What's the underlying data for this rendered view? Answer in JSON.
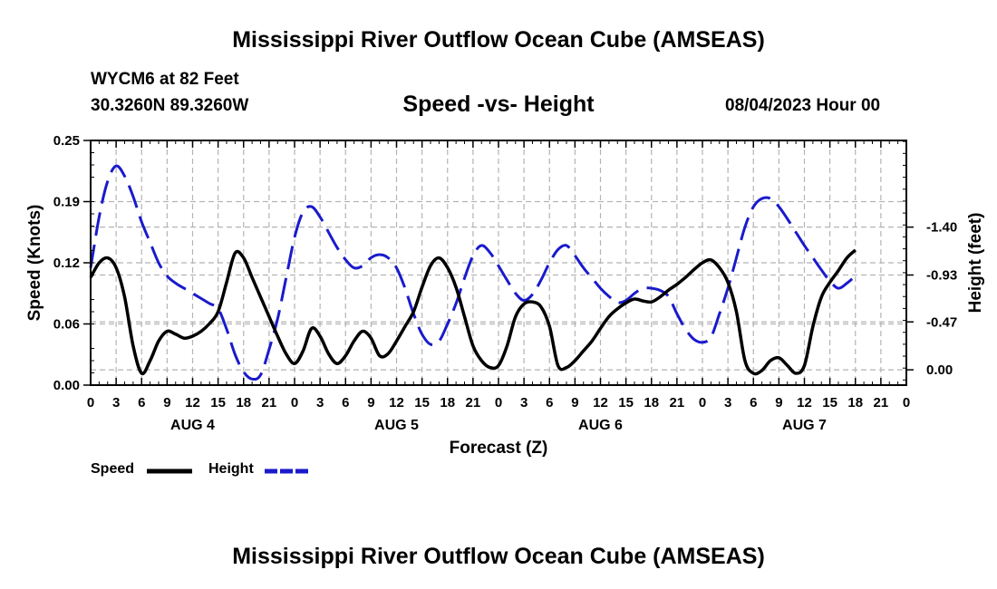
{
  "header": {
    "title": "Mississippi River Outflow Ocean Cube (AMSEAS)",
    "station": "WYCM6 at 82 Feet",
    "coords": "30.3260N  89.3260W",
    "subtitle": "Speed -vs- Height",
    "datetime": "08/04/2023 Hour 00",
    "footer_title": "Mississippi River Outflow Ocean Cube (AMSEAS)"
  },
  "legend": {
    "speed_label": "Speed",
    "height_label": "Height"
  },
  "chart_data": {
    "type": "line",
    "title": "Speed -vs- Height",
    "xlabel": "Forecast (Z)",
    "ylabel": "Speed (Knots)",
    "y2label": "Height (feet)",
    "x_range": [
      0,
      96
    ],
    "ylim": [
      0,
      0.25
    ],
    "y2lim": [
      0.15,
      -2.25
    ],
    "y_ticks": [
      "0.00",
      "0.06",
      "0.12",
      "0.19",
      "0.25"
    ],
    "y_tick_values": [
      0,
      0.0625,
      0.125,
      0.1875,
      0.25
    ],
    "y2_ticks": [
      "0.00",
      "-0.47",
      "-0.93",
      "-1.40"
    ],
    "y2_tick_values": [
      0,
      -0.47,
      -0.93,
      -1.4
    ],
    "x_tick_labels": [
      "0",
      "3",
      "6",
      "9",
      "12",
      "15",
      "18",
      "21",
      "0",
      "3",
      "6",
      "9",
      "12",
      "15",
      "18",
      "21",
      "0",
      "3",
      "6",
      "9",
      "12",
      "15",
      "18",
      "21",
      "0",
      "3",
      "6",
      "9",
      "12",
      "15",
      "18",
      "21",
      "0"
    ],
    "day_labels": [
      {
        "label": "AUG 4",
        "hour": 12
      },
      {
        "label": "AUG 5",
        "hour": 36
      },
      {
        "label": "AUG 6",
        "hour": 60
      },
      {
        "label": "AUG 7",
        "hour": 84
      }
    ],
    "series": [
      {
        "name": "Speed",
        "axis": "left",
        "color": "#000000",
        "style": "solid",
        "points": [
          [
            0,
            0.11
          ],
          [
            1,
            0.125
          ],
          [
            2,
            0.13
          ],
          [
            3,
            0.12
          ],
          [
            4,
            0.09
          ],
          [
            5,
            0.04
          ],
          [
            6,
            0.012
          ],
          [
            7,
            0.025
          ],
          [
            8,
            0.045
          ],
          [
            9,
            0.055
          ],
          [
            10,
            0.052
          ],
          [
            11,
            0.048
          ],
          [
            12,
            0.05
          ],
          [
            13,
            0.055
          ],
          [
            14,
            0.063
          ],
          [
            15,
            0.075
          ],
          [
            16,
            0.105
          ],
          [
            17,
            0.135
          ],
          [
            18,
            0.13
          ],
          [
            19,
            0.11
          ],
          [
            20,
            0.09
          ],
          [
            21,
            0.07
          ],
          [
            22,
            0.05
          ],
          [
            23,
            0.032
          ],
          [
            24,
            0.022
          ],
          [
            25,
            0.035
          ],
          [
            26,
            0.058
          ],
          [
            27,
            0.05
          ],
          [
            28,
            0.032
          ],
          [
            29,
            0.022
          ],
          [
            30,
            0.03
          ],
          [
            31,
            0.045
          ],
          [
            32,
            0.055
          ],
          [
            33,
            0.048
          ],
          [
            34,
            0.03
          ],
          [
            35,
            0.032
          ],
          [
            36,
            0.045
          ],
          [
            37,
            0.06
          ],
          [
            38,
            0.075
          ],
          [
            39,
            0.1
          ],
          [
            40,
            0.122
          ],
          [
            41,
            0.13
          ],
          [
            42,
            0.12
          ],
          [
            43,
            0.1
          ],
          [
            44,
            0.07
          ],
          [
            45,
            0.04
          ],
          [
            46,
            0.025
          ],
          [
            47,
            0.018
          ],
          [
            48,
            0.02
          ],
          [
            49,
            0.04
          ],
          [
            50,
            0.07
          ],
          [
            51,
            0.083
          ],
          [
            52,
            0.085
          ],
          [
            53,
            0.08
          ],
          [
            54,
            0.06
          ],
          [
            55,
            0.02
          ],
          [
            56,
            0.018
          ],
          [
            57,
            0.025
          ],
          [
            58,
            0.035
          ],
          [
            59,
            0.045
          ],
          [
            60,
            0.058
          ],
          [
            61,
            0.07
          ],
          [
            62,
            0.078
          ],
          [
            63,
            0.084
          ],
          [
            64,
            0.088
          ],
          [
            65,
            0.086
          ],
          [
            66,
            0.085
          ],
          [
            67,
            0.09
          ],
          [
            68,
            0.097
          ],
          [
            69,
            0.103
          ],
          [
            70,
            0.11
          ],
          [
            71,
            0.118
          ],
          [
            72,
            0.125
          ],
          [
            73,
            0.128
          ],
          [
            74,
            0.12
          ],
          [
            75,
            0.105
          ],
          [
            76,
            0.075
          ],
          [
            77,
            0.025
          ],
          [
            78,
            0.012
          ],
          [
            79,
            0.015
          ],
          [
            80,
            0.025
          ],
          [
            81,
            0.028
          ],
          [
            82,
            0.02
          ],
          [
            83,
            0.012
          ],
          [
            84,
            0.02
          ],
          [
            85,
            0.06
          ],
          [
            86,
            0.09
          ],
          [
            87,
            0.105
          ],
          [
            88,
            0.117
          ],
          [
            89,
            0.13
          ],
          [
            90,
            0.138
          ]
        ]
      },
      {
        "name": "Height",
        "axis": "right",
        "color": "#1a1acc",
        "style": "dashed",
        "points": [
          [
            0,
            -1.0
          ],
          [
            1,
            -1.5
          ],
          [
            2,
            -1.85
          ],
          [
            3,
            -2.0
          ],
          [
            4,
            -1.9
          ],
          [
            5,
            -1.7
          ],
          [
            6,
            -1.45
          ],
          [
            7,
            -1.25
          ],
          [
            8,
            -1.05
          ],
          [
            9,
            -0.92
          ],
          [
            10,
            -0.85
          ],
          [
            11,
            -0.8
          ],
          [
            12,
            -0.75
          ],
          [
            13,
            -0.7
          ],
          [
            14,
            -0.65
          ],
          [
            15,
            -0.6
          ],
          [
            16,
            -0.4
          ],
          [
            17,
            -0.15
          ],
          [
            18,
            0.02
          ],
          [
            19,
            0.09
          ],
          [
            20,
            0.05
          ],
          [
            21,
            -0.2
          ],
          [
            22,
            -0.5
          ],
          [
            23,
            -0.9
          ],
          [
            24,
            -1.3
          ],
          [
            25,
            -1.55
          ],
          [
            26,
            -1.6
          ],
          [
            27,
            -1.5
          ],
          [
            28,
            -1.35
          ],
          [
            29,
            -1.2
          ],
          [
            30,
            -1.08
          ],
          [
            31,
            -1.0
          ],
          [
            32,
            -1.02
          ],
          [
            33,
            -1.1
          ],
          [
            34,
            -1.13
          ],
          [
            35,
            -1.1
          ],
          [
            36,
            -1.0
          ],
          [
            37,
            -0.8
          ],
          [
            38,
            -0.55
          ],
          [
            39,
            -0.35
          ],
          [
            40,
            -0.25
          ],
          [
            41,
            -0.28
          ],
          [
            42,
            -0.45
          ],
          [
            43,
            -0.65
          ],
          [
            44,
            -0.9
          ],
          [
            45,
            -1.12
          ],
          [
            46,
            -1.22
          ],
          [
            47,
            -1.15
          ],
          [
            48,
            -1.02
          ],
          [
            49,
            -0.88
          ],
          [
            50,
            -0.75
          ],
          [
            51,
            -0.68
          ],
          [
            52,
            -0.74
          ],
          [
            53,
            -0.88
          ],
          [
            54,
            -1.05
          ],
          [
            55,
            -1.18
          ],
          [
            56,
            -1.22
          ],
          [
            57,
            -1.12
          ],
          [
            58,
            -1.0
          ],
          [
            59,
            -0.9
          ],
          [
            60,
            -0.8
          ],
          [
            61,
            -0.72
          ],
          [
            62,
            -0.66
          ],
          [
            63,
            -0.68
          ],
          [
            64,
            -0.75
          ],
          [
            65,
            -0.8
          ],
          [
            66,
            -0.8
          ],
          [
            67,
            -0.78
          ],
          [
            68,
            -0.72
          ],
          [
            69,
            -0.55
          ],
          [
            70,
            -0.4
          ],
          [
            71,
            -0.3
          ],
          [
            72,
            -0.27
          ],
          [
            73,
            -0.32
          ],
          [
            74,
            -0.55
          ],
          [
            75,
            -0.8
          ],
          [
            76,
            -1.1
          ],
          [
            77,
            -1.4
          ],
          [
            78,
            -1.6
          ],
          [
            79,
            -1.68
          ],
          [
            80,
            -1.68
          ],
          [
            81,
            -1.6
          ],
          [
            82,
            -1.48
          ],
          [
            83,
            -1.35
          ],
          [
            84,
            -1.22
          ],
          [
            85,
            -1.1
          ],
          [
            86,
            -0.98
          ],
          [
            87,
            -0.87
          ],
          [
            88,
            -0.8
          ],
          [
            89,
            -0.85
          ],
          [
            90,
            -0.92
          ]
        ]
      }
    ]
  }
}
